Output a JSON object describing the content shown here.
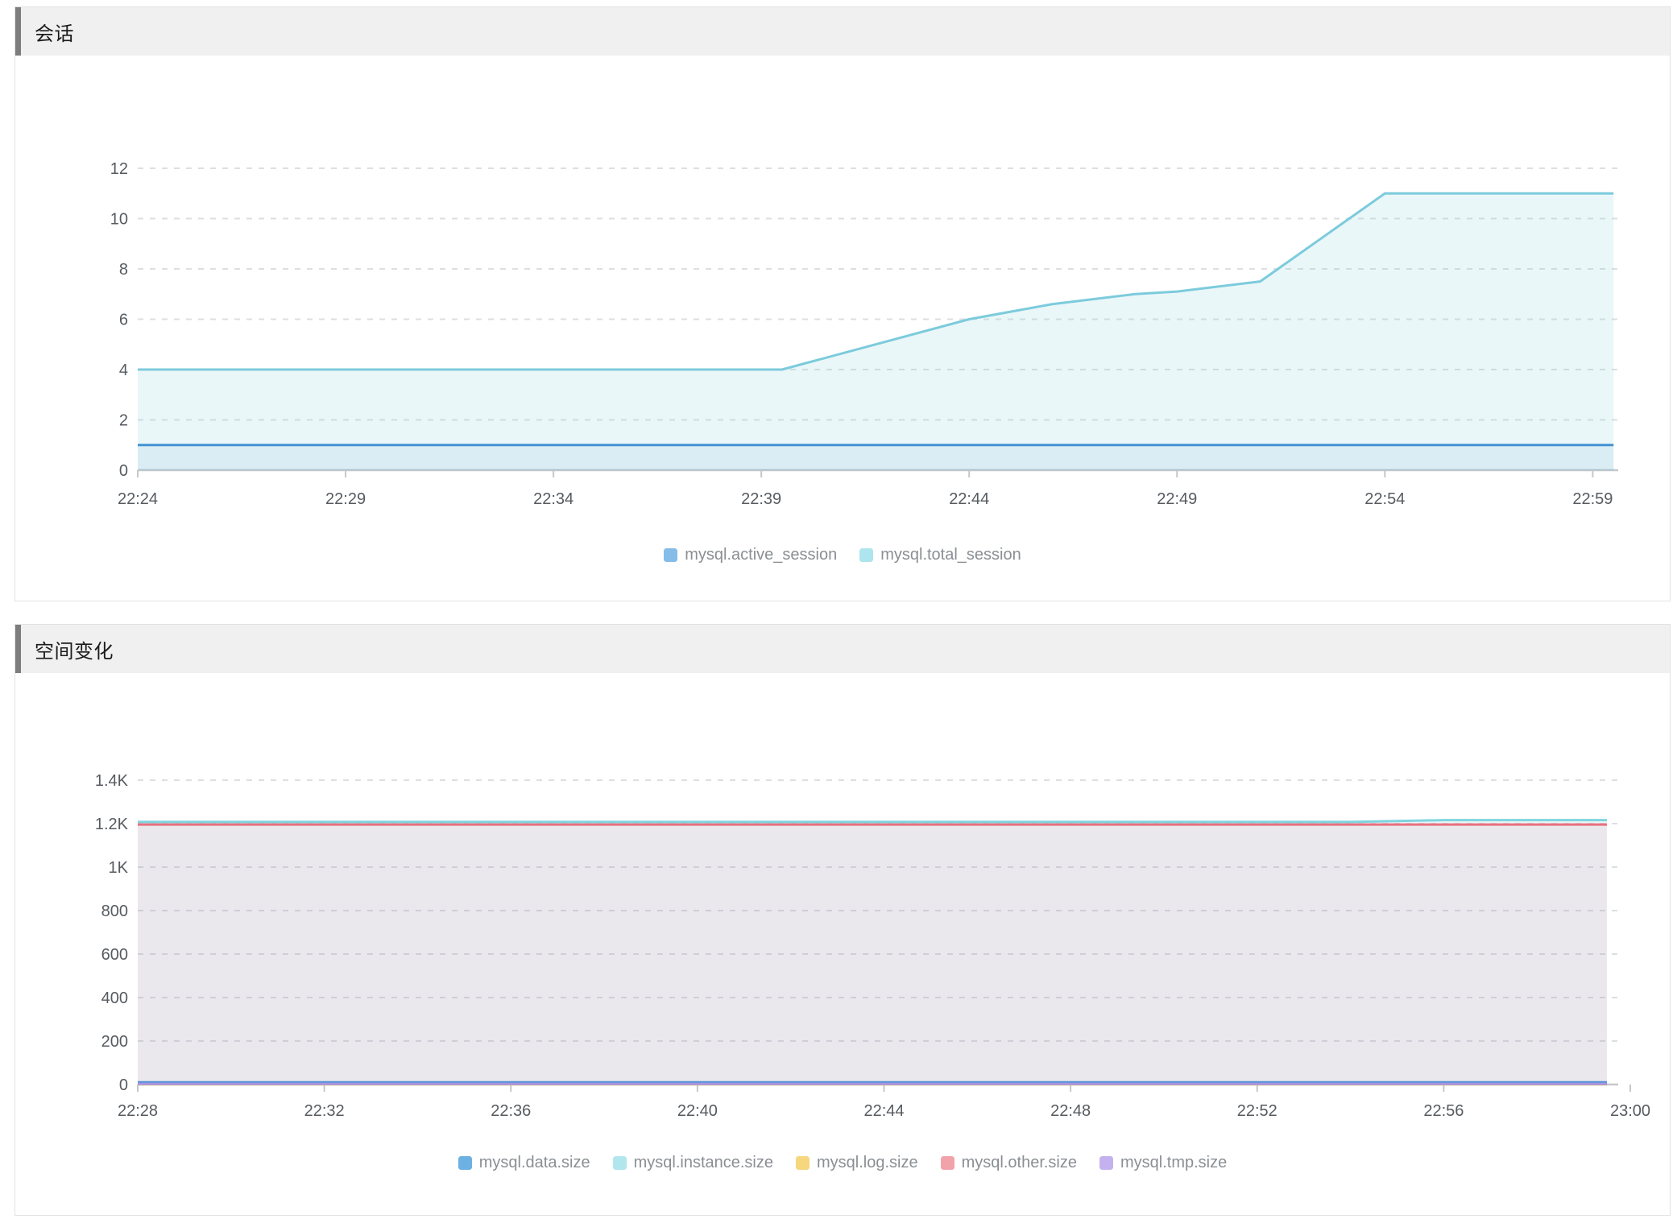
{
  "chart_data": [
    {
      "type": "area",
      "title": "会话",
      "x_domain": [
        "22:24",
        "23:00"
      ],
      "x_ticks": [
        "22:24",
        "22:29",
        "22:34",
        "22:39",
        "22:44",
        "22:49",
        "22:54",
        "22:59"
      ],
      "ylim": [
        0,
        12
      ],
      "y_ticks": [
        0,
        2,
        4,
        6,
        8,
        10,
        12
      ],
      "y_tick_labels": [
        "0",
        "2",
        "4",
        "6",
        "8",
        "10",
        "12"
      ],
      "grid": "horizontal-dashed",
      "legend_position": "bottom",
      "series": [
        {
          "name": "mysql.active_session",
          "color": "#4292d2",
          "legend_color": "#85bce8",
          "fill": "rgba(66,146,210,0.10)",
          "points": [
            [
              "22:24",
              1
            ],
            [
              "22:59:30",
              1
            ]
          ]
        },
        {
          "name": "mysql.total_session",
          "color": "#7ccbdc",
          "legend_color": "#aee4ed",
          "fill": "rgba(124,203,220,0.16)",
          "points": [
            [
              "22:24",
              4
            ],
            [
              "22:39:30",
              4
            ],
            [
              "22:44",
              6
            ],
            [
              "22:46",
              6.6
            ],
            [
              "22:48",
              7
            ],
            [
              "22:49",
              7.1
            ],
            [
              "22:51",
              7.5
            ],
            [
              "22:54",
              11
            ],
            [
              "22:59:30",
              11
            ]
          ]
        }
      ]
    },
    {
      "type": "area",
      "title": "空间变化",
      "x_domain": [
        "22:28",
        "23:00"
      ],
      "x_ticks": [
        "22:28",
        "22:32",
        "22:36",
        "22:40",
        "22:44",
        "22:48",
        "22:52",
        "22:56",
        "23:00"
      ],
      "ylim": [
        0,
        1400
      ],
      "y_ticks": [
        0,
        200,
        400,
        600,
        800,
        1000,
        1200,
        1400
      ],
      "y_tick_labels": [
        "0",
        "200",
        "400",
        "600",
        "800",
        "1K",
        "1.2K",
        "1.4K"
      ],
      "grid": "horizontal-dashed",
      "legend_position": "bottom",
      "series": [
        {
          "name": "mysql.data.size",
          "color": "#5894d6",
          "legend_color": "#6cb1e1",
          "fill": "rgba(88,148,214,0.10)",
          "points": [
            [
              "22:28",
              10
            ],
            [
              "22:59:30",
              10
            ]
          ]
        },
        {
          "name": "mysql.instance.size",
          "color": "#7fd4de",
          "legend_color": "#b2e6ee",
          "fill": "rgba(110,190,215,0.14)",
          "points": [
            [
              "22:28",
              1208
            ],
            [
              "22:54",
              1208
            ],
            [
              "22:56",
              1216
            ],
            [
              "22:59:30",
              1216
            ]
          ]
        },
        {
          "name": "mysql.log.size",
          "color": "#e8c25c",
          "legend_color": "#f6d77e",
          "fill": "rgba(232,194,92,0.10)",
          "points": [
            [
              "22:28",
              1
            ],
            [
              "22:59:30",
              1
            ]
          ]
        },
        {
          "name": "mysql.other.size",
          "color": "#e8707e",
          "legend_color": "#f2a2aa",
          "fill": "rgba(225,110,140,0.10)",
          "points": [
            [
              "22:28",
              1196
            ],
            [
              "22:59:30",
              1196
            ]
          ]
        },
        {
          "name": "mysql.tmp.size",
          "color": "#a393e3",
          "legend_color": "#c4b2ee",
          "fill": "rgba(163,147,227,0.12)",
          "points": [
            [
              "22:28",
              3
            ],
            [
              "22:59:30",
              3
            ]
          ]
        }
      ]
    }
  ]
}
